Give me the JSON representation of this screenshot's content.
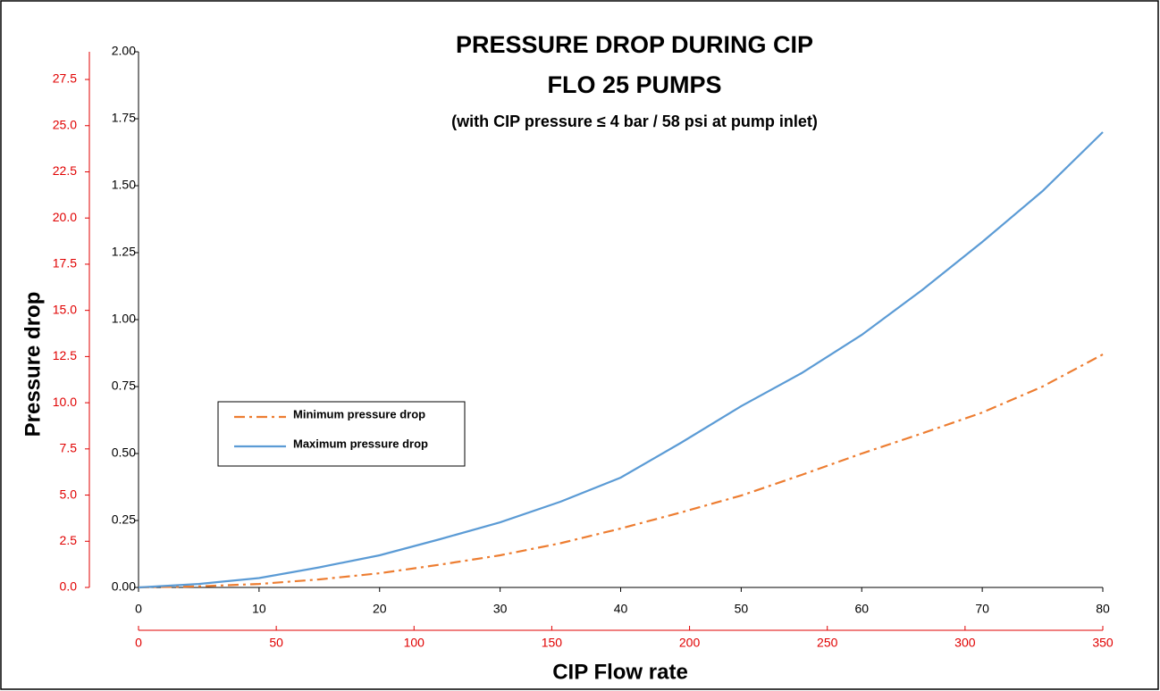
{
  "chart_data": {
    "type": "line",
    "title": "PRESSURE DROP DURING CIP",
    "subtitle": "FLO 25 PUMPS",
    "note": "(with CIP pressure ≤ 4 bar / 58 psi at pump inlet)",
    "y_label": "Pressure drop",
    "x_label": "CIP Flow rate",
    "x": [
      0,
      5,
      10,
      15,
      20,
      25,
      30,
      35,
      40,
      45,
      50,
      55,
      60,
      65,
      70,
      75,
      80
    ],
    "series": [
      {
        "name": "Minimum pressure drop",
        "color": "#ed7d31",
        "dash": "dash-dot",
        "values": [
          0,
          0.004,
          0.013,
          0.03,
          0.053,
          0.085,
          0.12,
          0.165,
          0.22,
          0.28,
          0.343,
          0.42,
          0.5,
          0.575,
          0.653,
          0.75,
          0.87
        ]
      },
      {
        "name": "Maximum pressure drop",
        "color": "#5b9bd5",
        "dash": "solid",
        "values": [
          0,
          0.013,
          0.035,
          0.075,
          0.12,
          0.18,
          0.243,
          0.32,
          0.41,
          0.54,
          0.677,
          0.8,
          0.943,
          1.11,
          1.29,
          1.48,
          1.7
        ]
      }
    ],
    "xlim": [
      0,
      80
    ],
    "xticks": [
      0,
      10,
      20,
      30,
      40,
      50,
      60,
      70,
      80
    ],
    "x2lim": [
      0,
      350
    ],
    "x2ticks": [
      0,
      50,
      100,
      150,
      200,
      250,
      300,
      350
    ],
    "ylim": [
      0,
      2
    ],
    "yticks": [
      {
        "value": 0,
        "label": "0.00"
      },
      {
        "value": 0.25,
        "label": "0.25"
      },
      {
        "value": 0.5,
        "label": "0.50"
      },
      {
        "value": 0.75,
        "label": "0.75"
      },
      {
        "value": 1,
        "label": "1.00"
      },
      {
        "value": 1.25,
        "label": "1.25"
      },
      {
        "value": 1.5,
        "label": "1.50"
      },
      {
        "value": 1.75,
        "label": "1.75"
      },
      {
        "value": 2,
        "label": "2.00"
      }
    ],
    "y2lim": [
      0,
      29
    ],
    "y2ticks": [
      {
        "value": 0,
        "label": "0.0"
      },
      2.5,
      {
        "value": 5,
        "label": "5.0"
      },
      7.5,
      {
        "value": 10,
        "label": "10.0"
      },
      12.5,
      {
        "value": 15,
        "label": "15.0"
      },
      17.5,
      {
        "value": 20,
        "label": "20.0"
      },
      22.5,
      {
        "value": 25,
        "label": "25.0"
      },
      27.5
    ],
    "secondary_axis_color": "#e00000",
    "grid": false
  }
}
